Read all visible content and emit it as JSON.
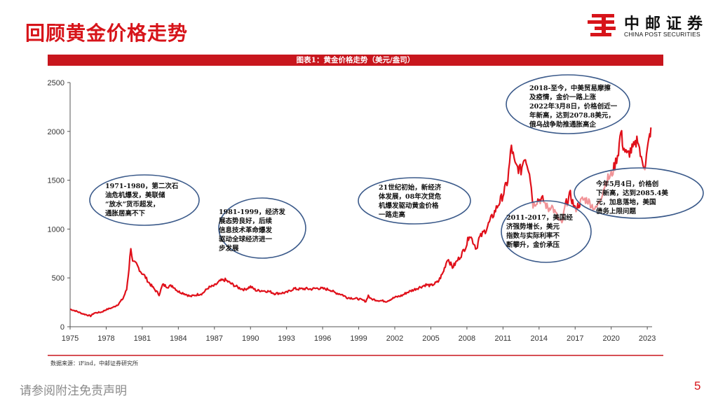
{
  "page": {
    "title": "回顾黄金价格走势",
    "logo_cn": "中邮证券",
    "logo_en": "CHINA POST SECURITIES",
    "source": "数据来源：iFind，中邮证券研究所",
    "disclaimer": "请参阅附注免责声明",
    "page_number": "5"
  },
  "colors": {
    "brand_red": "#d7141a",
    "banner_red": "#c8161d",
    "line": "#e0101a",
    "ellipse": "#3b5a8a"
  },
  "chart_data": {
    "type": "line",
    "title": "图表1：黄金价格走势（美元/盎司）",
    "xlabel": "",
    "ylabel": "",
    "xlim": [
      1975,
      2023.4
    ],
    "ylim": [
      0,
      2500
    ],
    "yticks": [
      0,
      500,
      1000,
      1500,
      2000,
      2500
    ],
    "xticks": [
      1975,
      1978,
      1981,
      1984,
      1987,
      1990,
      1993,
      1996,
      1999,
      2002,
      2005,
      2008,
      2011,
      2014,
      2017,
      2020,
      2023
    ],
    "grid": false,
    "series": [
      {
        "x": [
          1975.0,
          1975.5,
          1976.0,
          1976.7,
          1977.0,
          1977.6,
          1978.0,
          1978.6,
          1979.0,
          1979.4,
          1979.7,
          1979.9,
          1980.05,
          1980.2,
          1980.5,
          1980.9,
          1981.2,
          1981.5,
          1981.9,
          1982.4,
          1982.7,
          1983.1,
          1983.5,
          1984.0,
          1984.5,
          1985.0,
          1985.6,
          1986.0,
          1986.5,
          1987.0,
          1987.5,
          1987.9,
          1988.4,
          1989.0,
          1989.5,
          1990.0,
          1990.5,
          1991.0,
          1991.6,
          1992.0,
          1992.6,
          1993.0,
          1993.6,
          1994.0,
          1994.6,
          1995.0,
          1995.6,
          1996.0,
          1996.6,
          1997.0,
          1997.6,
          1998.0,
          1998.6,
          1999.0,
          1999.6,
          1999.8,
          2000.0,
          2000.6,
          2001.0,
          2001.3,
          2002.0,
          2002.6,
          2003.0,
          2003.6,
          2004.0,
          2004.6,
          2005.0,
          2005.6,
          2006.0,
          2006.4,
          2006.8,
          2007.0,
          2007.6,
          2008.0,
          2008.2,
          2008.8,
          2009.0,
          2009.6,
          2010.0,
          2010.6,
          2011.0,
          2011.4,
          2011.7,
          2012.0,
          2012.5,
          2012.8,
          2013.2,
          2013.5,
          2013.9,
          2014.3,
          2014.8,
          2015.0,
          2015.6,
          2015.9,
          2016.2,
          2016.6,
          2017.0,
          2017.6,
          2018.0,
          2018.7,
          2019.0,
          2019.6,
          2020.0,
          2020.3,
          2020.6,
          2020.8,
          2021.0,
          2021.3,
          2021.6,
          2022.0,
          2022.2,
          2022.5,
          2022.8,
          2023.0,
          2023.2,
          2023.3
        ],
        "y": [
          180,
          160,
          135,
          110,
          140,
          150,
          175,
          200,
          230,
          290,
          380,
          600,
          820,
          660,
          640,
          560,
          520,
          460,
          400,
          330,
          430,
          410,
          420,
          360,
          340,
          310,
          330,
          340,
          400,
          420,
          470,
          480,
          440,
          400,
          380,
          410,
          370,
          370,
          360,
          340,
          345,
          350,
          390,
          385,
          390,
          385,
          395,
          390,
          380,
          350,
          330,
          300,
          290,
          285,
          260,
          320,
          285,
          270,
          265,
          260,
          300,
          320,
          350,
          380,
          400,
          430,
          420,
          460,
          550,
          700,
          610,
          640,
          750,
          850,
          950,
          800,
          900,
          1000,
          1100,
          1250,
          1350,
          1500,
          1850,
          1650,
          1600,
          1750,
          1600,
          1250,
          1300,
          1300,
          1200,
          1250,
          1100,
          1050,
          1250,
          1350,
          1200,
          1300,
          1300,
          1200,
          1280,
          1500,
          1550,
          1650,
          1800,
          2000,
          1850,
          1750,
          1800,
          1850,
          1950,
          1700,
          1650,
          1800,
          1950,
          2040
        ]
      }
    ],
    "annotations": [
      {
        "id": "a1",
        "lines": [
          "1971-1980，第二次石",
          "油危机爆发，美联储",
          "“放水”货币超发，",
          "通胀居高不下"
        ]
      },
      {
        "id": "a2",
        "lines": [
          "1981-1999，经济发",
          "展态势良好，后续",
          "信息技术革命爆发",
          "驱动全球经济进一",
          "步发展"
        ]
      },
      {
        "id": "a3",
        "lines": [
          "21世纪初始，新经济",
          "体发展，08年次贷危",
          "机爆发驱动黄金价格",
          "一路走高"
        ]
      },
      {
        "id": "a4",
        "lines": [
          "2011-2017，美国经",
          "济强势增长，美元",
          "指数与实际利率不",
          "断攀升，金价承压"
        ]
      },
      {
        "id": "a5",
        "lines": [
          "2018-至今，中美贸易摩擦",
          "及疫情，金价一路上涨",
          "2022年3月8日，价格创近一",
          "年新高，达到2078.8美元，",
          "俄乌战争助推通胀高企"
        ]
      },
      {
        "id": "a6",
        "lines": [
          "今年5月4日，价格创",
          "下新高，达到2085.4美",
          "元，加息落地，美国",
          "债务上限问题"
        ]
      }
    ]
  }
}
